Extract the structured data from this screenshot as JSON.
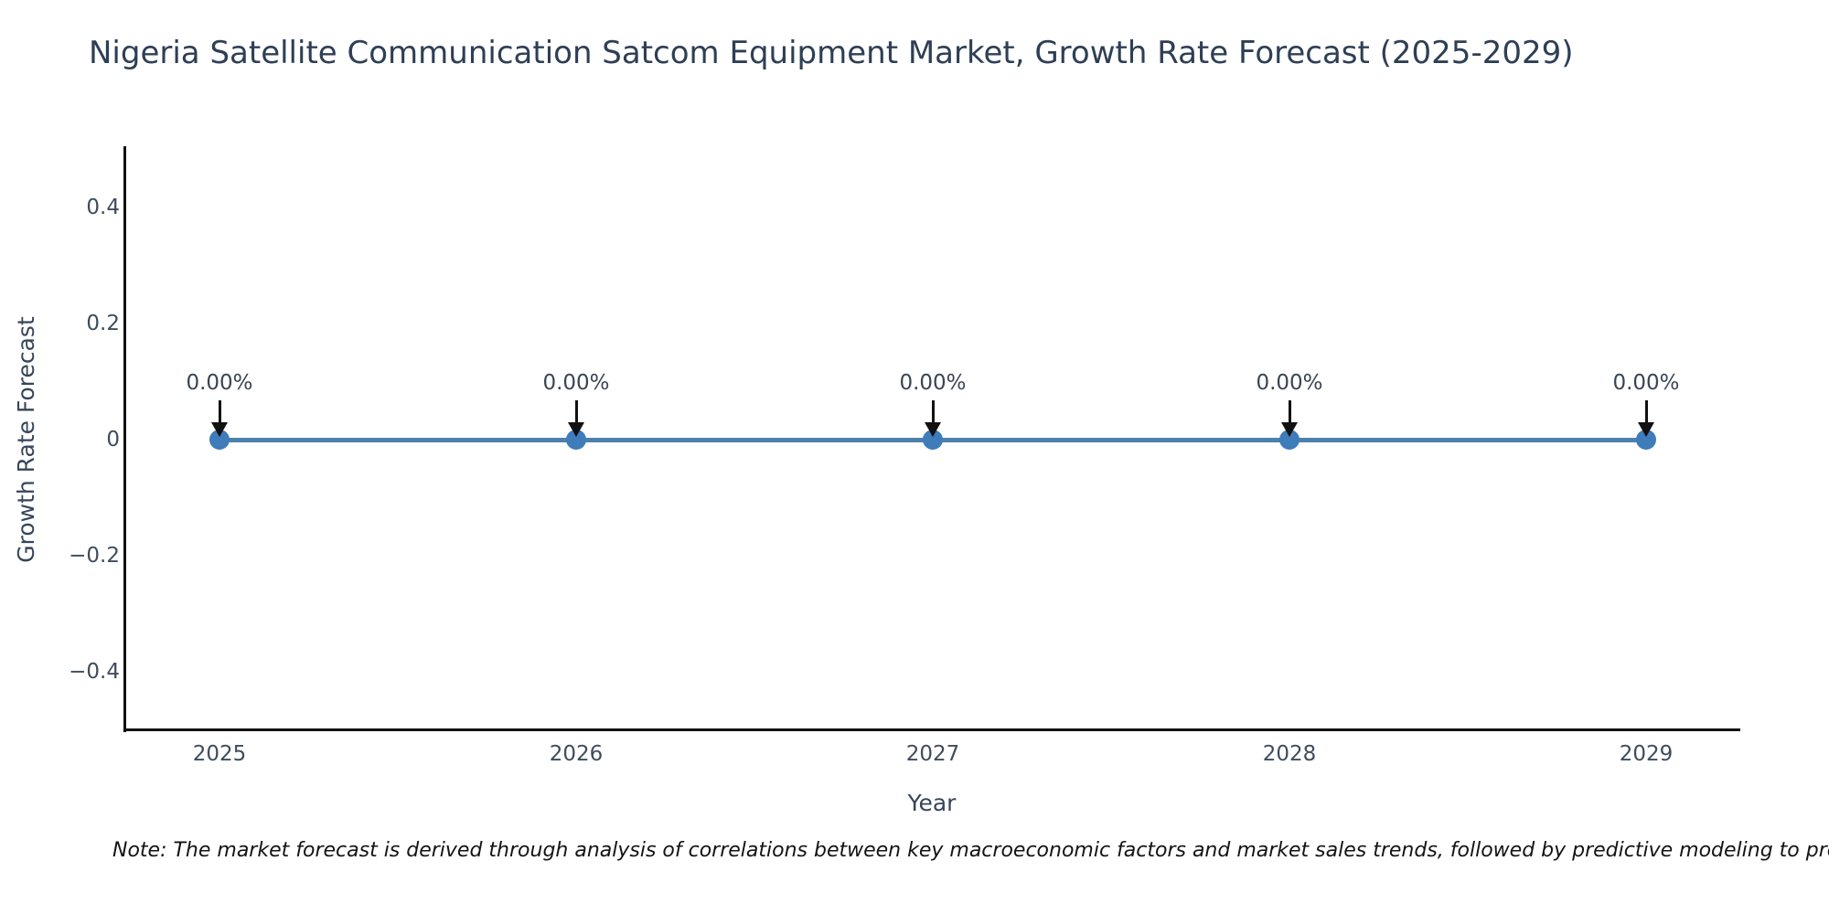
{
  "title": "Nigeria Satellite Communication Satcom Equipment Market, Growth Rate Forecast (2025-2029)",
  "note": "Note: The market forecast is derived through analysis of correlations between key macroeconomic factors and market sales trends, followed by predictive modeling to project future sa",
  "chart_data": {
    "type": "line",
    "title": "Nigeria Satellite Communication Satcom Equipment Market, Growth Rate Forecast (2025-2029)",
    "xlabel": "Year",
    "ylabel": "Growth Rate Forecast",
    "x": [
      2025,
      2026,
      2027,
      2028,
      2029
    ],
    "categories": [
      "2025",
      "2026",
      "2027",
      "2028",
      "2029"
    ],
    "series": [
      {
        "name": "Growth Rate Forecast",
        "values": [
          0.0,
          0.0,
          0.0,
          0.0,
          0.0
        ]
      }
    ],
    "point_labels": [
      "0.00%",
      "0.00%",
      "0.00%",
      "0.00%",
      "0.00%"
    ],
    "yticks": [
      0.4,
      0.2,
      0,
      -0.2,
      -0.4
    ],
    "ytick_labels": [
      "0.4",
      "0.2",
      "0",
      "−0.2",
      "−0.4"
    ],
    "ylim": [
      -0.5,
      0.5
    ],
    "grid": false,
    "legend_position": "none",
    "annotation_style": "value label with downward arrow to each point"
  },
  "colors": {
    "line": "#4c80ad",
    "marker": "#3e7cba",
    "spine": "#111111",
    "title_text": "#2e3f55",
    "tick_text": "#3f4c5d",
    "axis_label_text": "#36455a",
    "annotation_text": "#3a4555",
    "arrow": "#111111",
    "background": "#ffffff",
    "note_text": "#141414"
  }
}
